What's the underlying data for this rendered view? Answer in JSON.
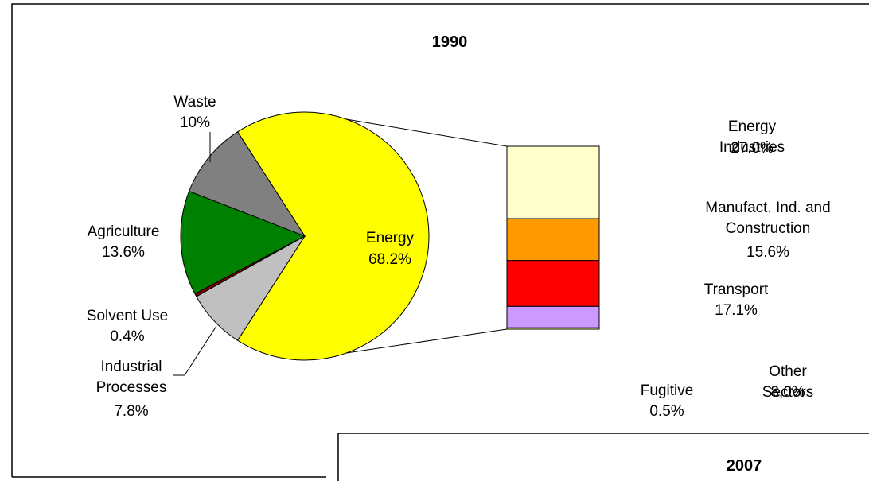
{
  "chart_data": [
    {
      "type": "pie",
      "title": "1990",
      "categories": [
        "Energy",
        "Waste",
        "Agriculture",
        "Solvent Use",
        "Industrial Processes"
      ],
      "values": [
        68.2,
        10,
        13.6,
        0.4,
        7.8
      ],
      "value_labels": [
        "68.2%",
        "10%",
        "13.6%",
        "0.4%",
        "7.8%"
      ],
      "colors": [
        "#ffff00",
        "#808080",
        "#008000",
        "#800000",
        "#c0c0c0"
      ],
      "breakdown": {
        "categories": [
          "Energy Industries",
          "Manufact. Ind. and Construction",
          "Transport",
          "Other Sectors",
          "Fugitive"
        ],
        "values": [
          27.0,
          15.6,
          17.1,
          8.0,
          0.5
        ],
        "value_labels": [
          "27.0%",
          "15.6%",
          "17.1%",
          "8,0%",
          "0.5%"
        ],
        "colors": [
          "#ffffcc",
          "#ff9900",
          "#ff0000",
          "#cc99ff",
          "#ffff66"
        ]
      }
    },
    {
      "type": "pie",
      "title": "2007"
    }
  ]
}
